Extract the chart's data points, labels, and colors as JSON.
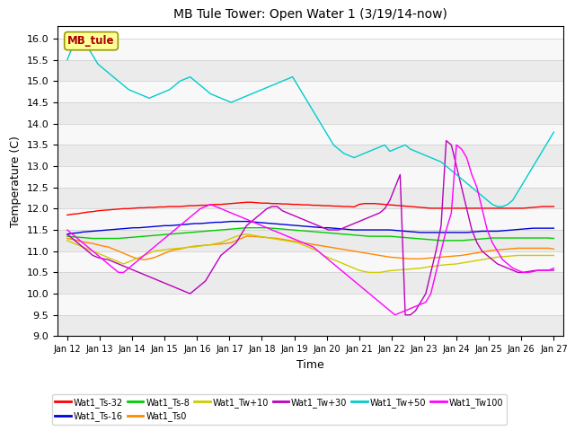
{
  "title": "MB Tule Tower: Open Water 1 (3/19/14-now)",
  "xlabel": "Time",
  "ylabel": "Temperature (C)",
  "ylim": [
    9.0,
    16.3
  ],
  "yticks": [
    9.0,
    9.5,
    10.0,
    10.5,
    11.0,
    11.5,
    12.0,
    12.5,
    13.0,
    13.5,
    14.0,
    14.5,
    15.0,
    15.5,
    16.0
  ],
  "x_labels": [
    "Jan 12",
    "Jan 13",
    "Jan 14",
    "Jan 15",
    "Jan 16",
    "Jan 17",
    "Jan 18",
    "Jan 19",
    "Jan 20",
    "Jan 21",
    "Jan 22",
    "Jan 23",
    "Jan 24",
    "Jan 25",
    "Jan 26",
    "Jan 27"
  ],
  "n_points": 96,
  "series": {
    "Wat1_Ts-32": {
      "color": "#ff0000",
      "values": [
        11.85,
        11.87,
        11.88,
        11.9,
        11.92,
        11.93,
        11.95,
        11.96,
        11.97,
        11.98,
        11.99,
        12.0,
        12.0,
        12.01,
        12.02,
        12.02,
        12.03,
        12.03,
        12.04,
        12.04,
        12.05,
        12.05,
        12.05,
        12.06,
        12.07,
        12.07,
        12.08,
        12.08,
        12.09,
        12.1,
        12.1,
        12.11,
        12.12,
        12.13,
        12.14,
        12.15,
        12.15,
        12.14,
        12.13,
        12.13,
        12.12,
        12.12,
        12.11,
        12.11,
        12.1,
        12.1,
        12.09,
        12.09,
        12.08,
        12.08,
        12.07,
        12.07,
        12.06,
        12.06,
        12.05,
        12.05,
        12.04,
        12.1,
        12.12,
        12.12,
        12.12,
        12.11,
        12.1,
        12.09,
        12.08,
        12.07,
        12.06,
        12.05,
        12.04,
        12.03,
        12.02,
        12.01,
        12.01,
        12.01,
        12.01,
        12.01,
        12.01,
        12.01,
        12.01,
        12.01,
        12.01,
        12.01,
        12.01,
        12.01,
        12.01,
        12.01,
        12.01,
        12.01,
        12.01,
        12.01,
        12.02,
        12.03,
        12.04,
        12.05,
        12.05,
        12.05
      ]
    },
    "Wat1_Ts-16": {
      "color": "#0000dd",
      "values": [
        11.4,
        11.42,
        11.43,
        11.45,
        11.46,
        11.47,
        11.48,
        11.49,
        11.5,
        11.51,
        11.52,
        11.53,
        11.54,
        11.55,
        11.55,
        11.56,
        11.57,
        11.58,
        11.59,
        11.6,
        11.6,
        11.61,
        11.62,
        11.63,
        11.64,
        11.65,
        11.65,
        11.66,
        11.67,
        11.68,
        11.68,
        11.69,
        11.7,
        11.7,
        11.7,
        11.7,
        11.69,
        11.68,
        11.67,
        11.66,
        11.65,
        11.64,
        11.63,
        11.62,
        11.61,
        11.6,
        11.59,
        11.58,
        11.57,
        11.56,
        11.55,
        11.55,
        11.54,
        11.53,
        11.52,
        11.51,
        11.5,
        11.5,
        11.5,
        11.5,
        11.5,
        11.5,
        11.5,
        11.5,
        11.49,
        11.48,
        11.47,
        11.46,
        11.45,
        11.44,
        11.44,
        11.44,
        11.44,
        11.44,
        11.44,
        11.44,
        11.44,
        11.44,
        11.44,
        11.45,
        11.46,
        11.47,
        11.47,
        11.47,
        11.47,
        11.48,
        11.49,
        11.5,
        11.51,
        11.52,
        11.53,
        11.54,
        11.54,
        11.54,
        11.54,
        11.54
      ]
    },
    "Wat1_Ts-8": {
      "color": "#00cc00",
      "values": [
        11.35,
        11.34,
        11.33,
        11.32,
        11.31,
        11.3,
        11.3,
        11.3,
        11.3,
        11.3,
        11.3,
        11.31,
        11.32,
        11.33,
        11.34,
        11.35,
        11.36,
        11.37,
        11.38,
        11.39,
        11.4,
        11.41,
        11.42,
        11.43,
        11.44,
        11.45,
        11.46,
        11.47,
        11.48,
        11.49,
        11.5,
        11.51,
        11.52,
        11.53,
        11.54,
        11.55,
        11.55,
        11.55,
        11.55,
        11.55,
        11.54,
        11.53,
        11.52,
        11.51,
        11.5,
        11.49,
        11.48,
        11.47,
        11.46,
        11.45,
        11.44,
        11.43,
        11.42,
        11.41,
        11.4,
        11.39,
        11.38,
        11.37,
        11.36,
        11.35,
        11.35,
        11.35,
        11.35,
        11.35,
        11.34,
        11.33,
        11.32,
        11.31,
        11.3,
        11.29,
        11.28,
        11.27,
        11.26,
        11.25,
        11.25,
        11.25,
        11.25,
        11.25,
        11.26,
        11.27,
        11.28,
        11.29,
        11.3,
        11.31,
        11.31,
        11.31,
        11.31,
        11.31,
        11.31,
        11.31,
        11.31,
        11.31,
        11.31,
        11.31,
        11.31,
        11.3
      ]
    },
    "Wat1_Ts0": {
      "color": "#ff8800",
      "values": [
        11.3,
        11.28,
        11.25,
        11.22,
        11.2,
        11.18,
        11.15,
        11.12,
        11.1,
        11.05,
        11.0,
        10.95,
        10.9,
        10.85,
        10.82,
        10.8,
        10.82,
        10.85,
        10.9,
        10.95,
        11.0,
        11.03,
        11.05,
        11.08,
        11.1,
        11.12,
        11.13,
        11.14,
        11.15,
        11.16,
        11.17,
        11.18,
        11.2,
        11.25,
        11.3,
        11.35,
        11.35,
        11.34,
        11.33,
        11.32,
        11.31,
        11.3,
        11.28,
        11.26,
        11.24,
        11.22,
        11.2,
        11.18,
        11.16,
        11.14,
        11.12,
        11.1,
        11.08,
        11.06,
        11.04,
        11.02,
        11.0,
        10.98,
        10.96,
        10.94,
        10.92,
        10.9,
        10.88,
        10.86,
        10.85,
        10.84,
        10.83,
        10.82,
        10.82,
        10.82,
        10.83,
        10.84,
        10.85,
        10.86,
        10.87,
        10.88,
        10.89,
        10.9,
        10.92,
        10.94,
        10.96,
        10.98,
        11.0,
        11.02,
        11.03,
        11.04,
        11.05,
        11.06,
        11.07,
        11.07,
        11.07,
        11.07,
        11.07,
        11.07,
        11.07,
        11.05
      ]
    },
    "Wat1_Tw+10": {
      "color": "#cccc00",
      "values": [
        11.25,
        11.2,
        11.15,
        11.1,
        11.05,
        11.0,
        10.95,
        10.9,
        10.85,
        10.8,
        10.75,
        10.7,
        10.75,
        10.8,
        10.85,
        10.9,
        10.95,
        11.0,
        11.02,
        11.03,
        11.05,
        11.06,
        11.07,
        11.08,
        11.1,
        11.1,
        11.12,
        11.14,
        11.15,
        11.18,
        11.2,
        11.25,
        11.3,
        11.35,
        11.38,
        11.4,
        11.38,
        11.36,
        11.34,
        11.32,
        11.3,
        11.28,
        11.26,
        11.24,
        11.22,
        11.2,
        11.15,
        11.1,
        11.05,
        11.0,
        10.9,
        10.85,
        10.8,
        10.75,
        10.7,
        10.65,
        10.6,
        10.55,
        10.52,
        10.5,
        10.5,
        10.5,
        10.52,
        10.54,
        10.55,
        10.56,
        10.57,
        10.58,
        10.59,
        10.6,
        10.62,
        10.64,
        10.65,
        10.67,
        10.68,
        10.69,
        10.7,
        10.72,
        10.74,
        10.76,
        10.78,
        10.8,
        10.82,
        10.84,
        10.86,
        10.87,
        10.88,
        10.89,
        10.9,
        10.9,
        10.9,
        10.9,
        10.9,
        10.9,
        10.9,
        10.9
      ]
    },
    "Wat1_Tw+30": {
      "color": "#bb00bb",
      "values": [
        11.4,
        11.3,
        11.2,
        11.1,
        11.0,
        10.9,
        10.85,
        10.82,
        10.8,
        10.75,
        10.7,
        10.65,
        10.6,
        10.55,
        10.5,
        10.45,
        10.4,
        10.35,
        10.3,
        10.25,
        10.2,
        10.15,
        10.1,
        10.05,
        10.0,
        10.1,
        10.2,
        10.3,
        10.5,
        10.7,
        10.9,
        11.0,
        11.1,
        11.2,
        11.4,
        11.6,
        11.7,
        11.8,
        11.9,
        12.0,
        12.05,
        12.05,
        11.95,
        11.9,
        11.85,
        11.8,
        11.75,
        11.7,
        11.65,
        11.6,
        11.55,
        11.5,
        11.5,
        11.5,
        11.55,
        11.6,
        11.65,
        11.7,
        11.75,
        11.8,
        11.85,
        11.9,
        12.0,
        12.2,
        12.5,
        12.8,
        9.5,
        9.5,
        9.6,
        9.8,
        10.0,
        10.5,
        11.0,
        11.6,
        13.6,
        13.5,
        13.0,
        12.5,
        12.0,
        11.5,
        11.2,
        11.0,
        10.9,
        10.8,
        10.7,
        10.65,
        10.6,
        10.55,
        10.5,
        10.5,
        10.52,
        10.54,
        10.55,
        10.55,
        10.55,
        10.55
      ]
    },
    "Wat1_Tw+50": {
      "color": "#00cccc",
      "values": [
        15.5,
        15.8,
        15.9,
        16.0,
        15.8,
        15.6,
        15.4,
        15.3,
        15.2,
        15.1,
        15.0,
        14.9,
        14.8,
        14.75,
        14.7,
        14.65,
        14.6,
        14.65,
        14.7,
        14.75,
        14.8,
        14.9,
        15.0,
        15.05,
        15.1,
        15.0,
        14.9,
        14.8,
        14.7,
        14.65,
        14.6,
        14.55,
        14.5,
        14.55,
        14.6,
        14.65,
        14.7,
        14.75,
        14.8,
        14.85,
        14.9,
        14.95,
        15.0,
        15.05,
        15.1,
        14.9,
        14.7,
        14.5,
        14.3,
        14.1,
        13.9,
        13.7,
        13.5,
        13.4,
        13.3,
        13.25,
        13.2,
        13.25,
        13.3,
        13.35,
        13.4,
        13.45,
        13.5,
        13.35,
        13.4,
        13.45,
        13.5,
        13.4,
        13.35,
        13.3,
        13.25,
        13.2,
        13.15,
        13.1,
        13.0,
        12.9,
        12.8,
        12.7,
        12.6,
        12.5,
        12.4,
        12.3,
        12.2,
        12.1,
        12.05,
        12.05,
        12.1,
        12.2,
        12.4,
        12.6,
        12.8,
        13.0,
        13.2,
        13.4,
        13.6,
        13.8
      ]
    },
    "Wat1_Tw100": {
      "color": "#ff00ff",
      "values": [
        11.5,
        11.4,
        11.3,
        11.2,
        11.1,
        11.0,
        10.9,
        10.8,
        10.7,
        10.6,
        10.5,
        10.5,
        10.6,
        10.7,
        10.8,
        10.9,
        11.0,
        11.1,
        11.2,
        11.3,
        11.4,
        11.5,
        11.6,
        11.7,
        11.8,
        11.9,
        12.0,
        12.05,
        12.1,
        12.05,
        12.0,
        11.95,
        11.9,
        11.85,
        11.8,
        11.75,
        11.7,
        11.65,
        11.6,
        11.55,
        11.5,
        11.45,
        11.4,
        11.35,
        11.3,
        11.25,
        11.2,
        11.15,
        11.1,
        11.0,
        10.9,
        10.8,
        10.7,
        10.6,
        10.5,
        10.4,
        10.3,
        10.2,
        10.1,
        10.0,
        9.9,
        9.8,
        9.7,
        9.6,
        9.5,
        9.55,
        9.6,
        9.65,
        9.7,
        9.75,
        9.8,
        10.0,
        10.5,
        11.0,
        11.5,
        11.9,
        13.5,
        13.4,
        13.2,
        12.8,
        12.5,
        12.0,
        11.5,
        11.2,
        11.0,
        10.8,
        10.7,
        10.6,
        10.55,
        10.5,
        10.5,
        10.52,
        10.55,
        10.55,
        10.55,
        10.6
      ]
    }
  },
  "annotation_text": "MB_tule",
  "legend_order": [
    "Wat1_Ts-32",
    "Wat1_Ts-16",
    "Wat1_Ts-8",
    "Wat1_Ts0",
    "Wat1_Tw+10",
    "Wat1_Tw+30",
    "Wat1_Tw+50",
    "Wat1_Tw100"
  ]
}
